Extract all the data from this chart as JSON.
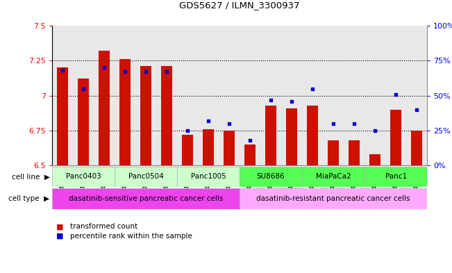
{
  "title": "GDS5627 / ILMN_3300937",
  "samples": [
    "GSM1435684",
    "GSM1435685",
    "GSM1435686",
    "GSM1435687",
    "GSM1435688",
    "GSM1435689",
    "GSM1435690",
    "GSM1435691",
    "GSM1435692",
    "GSM1435693",
    "GSM1435694",
    "GSM1435695",
    "GSM1435696",
    "GSM1435697",
    "GSM1435698",
    "GSM1435699",
    "GSM1435700",
    "GSM1435701"
  ],
  "bar_values": [
    7.2,
    7.12,
    7.32,
    7.26,
    7.21,
    7.21,
    6.72,
    6.76,
    6.75,
    6.65,
    6.93,
    6.91,
    6.93,
    6.68,
    6.68,
    6.58,
    6.9,
    6.75
  ],
  "dot_values": [
    68,
    55,
    70,
    67,
    67,
    67,
    25,
    32,
    30,
    18,
    47,
    46,
    55,
    30,
    30,
    25,
    51,
    40
  ],
  "ylim_left": [
    6.5,
    7.5
  ],
  "ylim_right": [
    0,
    100
  ],
  "yticks_left": [
    6.5,
    6.75,
    7.0,
    7.25,
    7.5
  ],
  "ytick_labels_left": [
    "6.5",
    "6.75",
    "7",
    "7.25",
    "7.5"
  ],
  "yticks_right": [
    0,
    25,
    50,
    75,
    100
  ],
  "ytick_labels_right": [
    "0%",
    "25%",
    "50%",
    "75%",
    "100%"
  ],
  "bar_color": "#CC1100",
  "dot_color": "#0000CC",
  "baseline": 6.5,
  "cell_lines": [
    {
      "name": "Panc0403",
      "start": 0,
      "end": 3,
      "color": "#ccffcc"
    },
    {
      "name": "Panc0504",
      "start": 3,
      "end": 6,
      "color": "#ccffcc"
    },
    {
      "name": "Panc1005",
      "start": 6,
      "end": 9,
      "color": "#ccffcc"
    },
    {
      "name": "SU8686",
      "start": 9,
      "end": 12,
      "color": "#55ff55"
    },
    {
      "name": "MiaPaCa2",
      "start": 12,
      "end": 15,
      "color": "#55ff55"
    },
    {
      "name": "Panc1",
      "start": 15,
      "end": 18,
      "color": "#55ff55"
    }
  ],
  "cell_type_sensitive": {
    "label": "dasatinib-sensitive pancreatic cancer cells",
    "start": 0,
    "end": 9,
    "color": "#ee44ee"
  },
  "cell_type_resistant": {
    "label": "dasatinib-resistant pancreatic cancer cells",
    "start": 9,
    "end": 18,
    "color": "#ffaaff"
  },
  "legend_bar_label": "transformed count",
  "legend_dot_label": "percentile rank within the sample",
  "grid_dotted_values": [
    6.75,
    7.0,
    7.25
  ],
  "plot_bg_color": "#e8e8e8"
}
